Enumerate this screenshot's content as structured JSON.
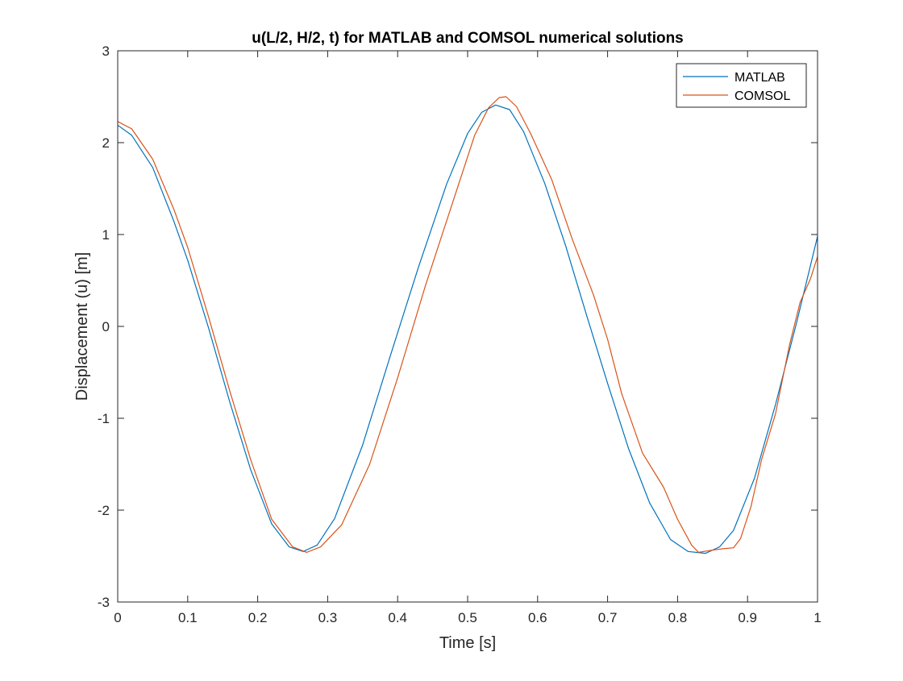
{
  "chart_data": {
    "type": "line",
    "title": "u(L/2, H/2, t) for MATLAB and COMSOL numerical solutions",
    "xlabel": "Time [s]",
    "ylabel": "Displacement (u) [m]",
    "xlim": [
      0,
      1
    ],
    "ylim": [
      -3,
      3
    ],
    "xticks": [
      0,
      0.1,
      0.2,
      0.3,
      0.4,
      0.5,
      0.6,
      0.7,
      0.8,
      0.9,
      1
    ],
    "xtick_labels": [
      "0",
      "0.1",
      "0.2",
      "0.3",
      "0.4",
      "0.5",
      "0.6",
      "0.7",
      "0.8",
      "0.9",
      "1"
    ],
    "yticks": [
      -3,
      -2,
      -1,
      0,
      1,
      2,
      3
    ],
    "ytick_labels": [
      "-3",
      "-2",
      "-1",
      "0",
      "1",
      "2",
      "3"
    ],
    "grid": false,
    "legend_position": "top-right",
    "series": [
      {
        "name": "MATLAB",
        "color": "#0072BD",
        "x": [
          0,
          0.02,
          0.05,
          0.08,
          0.1,
          0.13,
          0.16,
          0.19,
          0.22,
          0.245,
          0.265,
          0.285,
          0.31,
          0.35,
          0.39,
          0.43,
          0.47,
          0.5,
          0.52,
          0.54,
          0.56,
          0.58,
          0.61,
          0.64,
          0.67,
          0.7,
          0.73,
          0.76,
          0.79,
          0.815,
          0.84,
          0.86,
          0.88,
          0.91,
          0.94,
          0.97,
          1.0
        ],
        "y": [
          2.19,
          2.08,
          1.73,
          1.15,
          0.72,
          -0.02,
          -0.82,
          -1.56,
          -2.15,
          -2.4,
          -2.45,
          -2.38,
          -2.09,
          -1.29,
          -0.31,
          0.65,
          1.55,
          2.1,
          2.33,
          2.41,
          2.36,
          2.12,
          1.56,
          0.88,
          0.12,
          -0.62,
          -1.33,
          -1.92,
          -2.32,
          -2.45,
          -2.47,
          -2.4,
          -2.22,
          -1.65,
          -0.85,
          0.04,
          0.98
        ]
      },
      {
        "name": "COMSOL",
        "color": "#D95319",
        "x": [
          0,
          0.02,
          0.05,
          0.08,
          0.1,
          0.13,
          0.16,
          0.19,
          0.22,
          0.25,
          0.27,
          0.29,
          0.32,
          0.36,
          0.4,
          0.44,
          0.48,
          0.51,
          0.53,
          0.545,
          0.555,
          0.57,
          0.59,
          0.62,
          0.65,
          0.68,
          0.7,
          0.72,
          0.75,
          0.78,
          0.8,
          0.82,
          0.83,
          0.845,
          0.865,
          0.88,
          0.89,
          0.905,
          0.92,
          0.94,
          0.96,
          0.975,
          0.99,
          1.0
        ],
        "y": [
          2.23,
          2.15,
          1.82,
          1.28,
          0.86,
          0.1,
          -0.7,
          -1.45,
          -2.1,
          -2.4,
          -2.46,
          -2.4,
          -2.16,
          -1.5,
          -0.56,
          0.45,
          1.38,
          2.08,
          2.38,
          2.49,
          2.5,
          2.39,
          2.1,
          1.6,
          0.94,
          0.34,
          -0.14,
          -0.73,
          -1.38,
          -1.75,
          -2.1,
          -2.38,
          -2.46,
          -2.44,
          -2.42,
          -2.41,
          -2.31,
          -1.96,
          -1.45,
          -0.95,
          -0.2,
          0.26,
          0.52,
          0.76
        ]
      }
    ]
  }
}
